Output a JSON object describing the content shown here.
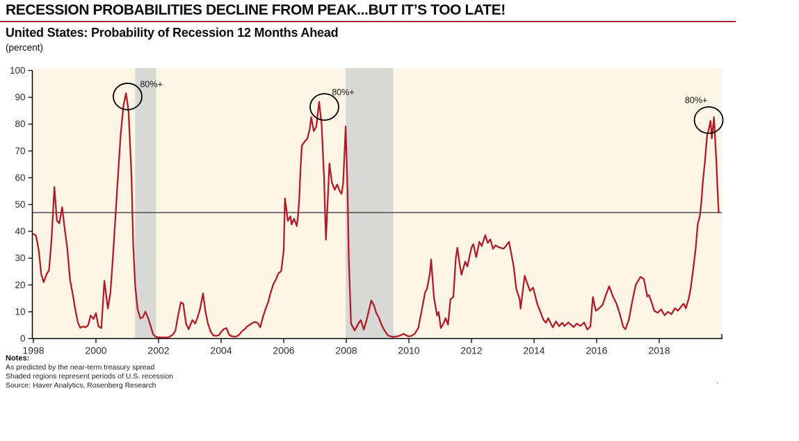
{
  "header": {
    "title": "RECESSION PROBABILITIES DECLINE FROM PEAK...BUT IT’S TOO LATE!",
    "subtitle": "United States: Probability of Recession 12 Months Ahead",
    "unit_label": "(percent)"
  },
  "notes": {
    "heading": "Notes:",
    "lines": [
      "As predicted by the near-term treasury spread",
      "Shaded regions represent periods of U.S. recession",
      "Source: Haver Analytics, Rosenberg Research"
    ]
  },
  "stray_dot": ".",
  "colors": {
    "line": "#b01c28",
    "plot_background": "#fdf6e7",
    "recession_band": "#d8d8d6",
    "reference_line": "#4d4d4d",
    "axis": "#000000",
    "tick_label": "#2b2b2b",
    "annotation": "#111111",
    "title_rule": "#9e2a36"
  },
  "chart_data": {
    "type": "line",
    "title": "United States: Probability of Recession 12 Months Ahead",
    "xlabel": "",
    "ylabel": "percent",
    "xlim": [
      1998,
      2020
    ],
    "ylim": [
      0,
      100
    ],
    "x_ticks": [
      1998,
      2000,
      2002,
      2004,
      2006,
      2008,
      2010,
      2012,
      2014,
      2016,
      2018
    ],
    "y_ticks": [
      0,
      10,
      20,
      30,
      40,
      50,
      60,
      70,
      80,
      90,
      100
    ],
    "grid": false,
    "legend": "none",
    "reference_line": {
      "value": 47
    },
    "recession_bands": [
      [
        2001.25,
        2001.92
      ],
      [
        2007.98,
        2009.5
      ]
    ],
    "annotations": [
      {
        "label": "80%+",
        "circle": {
          "year": 2001.01,
          "value": 90.3
        },
        "label_pos": {
          "year": 2001.77,
          "value": 94.8
        }
      },
      {
        "label": "80%+",
        "circle": {
          "year": 2007.3,
          "value": 86.4
        },
        "label_pos": {
          "year": 2007.9,
          "value": 91.8
        }
      },
      {
        "label": "80%+",
        "circle": {
          "year": 2019.58,
          "value": 81.5
        },
        "label_pos": {
          "year": 2019.18,
          "value": 88.9
        }
      }
    ],
    "series": [
      {
        "name": "Probability of recession 12 months ahead (%)",
        "points": [
          [
            1998.0,
            39
          ],
          [
            1998.08,
            38.5
          ],
          [
            1998.17,
            33
          ],
          [
            1998.25,
            24
          ],
          [
            1998.33,
            21
          ],
          [
            1998.42,
            24
          ],
          [
            1998.5,
            25.5
          ],
          [
            1998.58,
            37
          ],
          [
            1998.67,
            56.5
          ],
          [
            1998.75,
            44
          ],
          [
            1998.83,
            43
          ],
          [
            1998.92,
            49
          ],
          [
            1999.0,
            41
          ],
          [
            1999.08,
            34
          ],
          [
            1999.17,
            22
          ],
          [
            1999.25,
            17
          ],
          [
            1999.33,
            11.5
          ],
          [
            1999.42,
            6
          ],
          [
            1999.5,
            4
          ],
          [
            1999.58,
            4.5
          ],
          [
            1999.67,
            4.2
          ],
          [
            1999.75,
            5
          ],
          [
            1999.83,
            8.6
          ],
          [
            1999.92,
            7.3
          ],
          [
            2000.0,
            9.5
          ],
          [
            2000.08,
            4.5
          ],
          [
            2000.17,
            3.9
          ],
          [
            2000.27,
            21.5
          ],
          [
            2000.38,
            11.2
          ],
          [
            2000.46,
            17
          ],
          [
            2000.54,
            30
          ],
          [
            2000.63,
            47
          ],
          [
            2000.71,
            62
          ],
          [
            2000.79,
            76
          ],
          [
            2000.88,
            87
          ],
          [
            2000.96,
            91.5
          ],
          [
            2001.04,
            85
          ],
          [
            2001.13,
            62
          ],
          [
            2001.19,
            35
          ],
          [
            2001.25,
            20
          ],
          [
            2001.33,
            11
          ],
          [
            2001.42,
            7.5
          ],
          [
            2001.5,
            8
          ],
          [
            2001.58,
            10
          ],
          [
            2001.67,
            7.5
          ],
          [
            2001.75,
            4.5
          ],
          [
            2001.83,
            1.5
          ],
          [
            2001.92,
            0.6
          ],
          [
            2002.0,
            0.5
          ],
          [
            2002.17,
            0.4
          ],
          [
            2002.33,
            0.5
          ],
          [
            2002.46,
            1.5
          ],
          [
            2002.54,
            3
          ],
          [
            2002.63,
            9
          ],
          [
            2002.71,
            13.5
          ],
          [
            2002.79,
            13
          ],
          [
            2002.88,
            5.5
          ],
          [
            2002.96,
            3.5
          ],
          [
            2003.08,
            6.9
          ],
          [
            2003.17,
            5.6
          ],
          [
            2003.25,
            8
          ],
          [
            2003.33,
            11.2
          ],
          [
            2003.42,
            16.9
          ],
          [
            2003.5,
            10
          ],
          [
            2003.58,
            5.5
          ],
          [
            2003.67,
            2.5
          ],
          [
            2003.75,
            1.2
          ],
          [
            2003.83,
            1
          ],
          [
            2003.92,
            1.2
          ],
          [
            2004.0,
            2.5
          ],
          [
            2004.08,
            3.5
          ],
          [
            2004.17,
            3.9
          ],
          [
            2004.25,
            1.5
          ],
          [
            2004.33,
            0.9
          ],
          [
            2004.42,
            0.7
          ],
          [
            2004.5,
            0.8
          ],
          [
            2004.58,
            1.5
          ],
          [
            2004.67,
            2.8
          ],
          [
            2004.75,
            3.5
          ],
          [
            2004.83,
            4.5
          ],
          [
            2004.92,
            5.2
          ],
          [
            2005.0,
            5.8
          ],
          [
            2005.08,
            6.2
          ],
          [
            2005.17,
            5.8
          ],
          [
            2005.25,
            4.2
          ],
          [
            2005.33,
            7.8
          ],
          [
            2005.42,
            11
          ],
          [
            2005.5,
            13.5
          ],
          [
            2005.58,
            17
          ],
          [
            2005.67,
            20.4
          ],
          [
            2005.75,
            22
          ],
          [
            2005.83,
            24.3
          ],
          [
            2005.92,
            25.2
          ],
          [
            2006.0,
            33
          ],
          [
            2006.04,
            52.3
          ],
          [
            2006.13,
            43.9
          ],
          [
            2006.21,
            45.6
          ],
          [
            2006.25,
            42.6
          ],
          [
            2006.33,
            44.7
          ],
          [
            2006.42,
            42
          ],
          [
            2006.46,
            46
          ],
          [
            2006.5,
            53
          ],
          [
            2006.54,
            64
          ],
          [
            2006.58,
            72
          ],
          [
            2006.67,
            73.5
          ],
          [
            2006.75,
            74.5
          ],
          [
            2006.83,
            78
          ],
          [
            2006.88,
            82.6
          ],
          [
            2006.96,
            77.4
          ],
          [
            2007.04,
            79
          ],
          [
            2007.13,
            88.3
          ],
          [
            2007.21,
            80
          ],
          [
            2007.29,
            60
          ],
          [
            2007.35,
            36.9
          ],
          [
            2007.42,
            55
          ],
          [
            2007.46,
            65.3
          ],
          [
            2007.54,
            58.2
          ],
          [
            2007.63,
            55.5
          ],
          [
            2007.71,
            57.5
          ],
          [
            2007.79,
            55
          ],
          [
            2007.85,
            54
          ],
          [
            2007.9,
            58
          ],
          [
            2007.98,
            79.1
          ],
          [
            2008.04,
            55
          ],
          [
            2008.08,
            30
          ],
          [
            2008.15,
            5.6
          ],
          [
            2008.27,
            3
          ],
          [
            2008.38,
            5.5
          ],
          [
            2008.46,
            6.9
          ],
          [
            2008.56,
            3.4
          ],
          [
            2008.65,
            7
          ],
          [
            2008.73,
            11
          ],
          [
            2008.8,
            14.2
          ],
          [
            2008.88,
            12.5
          ],
          [
            2008.96,
            9.5
          ],
          [
            2009.04,
            7.8
          ],
          [
            2009.13,
            5
          ],
          [
            2009.22,
            3
          ],
          [
            2009.33,
            1.2
          ],
          [
            2009.42,
            0.8
          ],
          [
            2009.5,
            0.6
          ],
          [
            2009.63,
            0.8
          ],
          [
            2009.75,
            1.3
          ],
          [
            2009.83,
            1.8
          ],
          [
            2009.92,
            1.2
          ],
          [
            2010.0,
            0.8
          ],
          [
            2010.08,
            1
          ],
          [
            2010.18,
            1.7
          ],
          [
            2010.3,
            3.9
          ],
          [
            2010.4,
            9.9
          ],
          [
            2010.52,
            17.3
          ],
          [
            2010.58,
            18.6
          ],
          [
            2010.67,
            24.3
          ],
          [
            2010.71,
            29.5
          ],
          [
            2010.8,
            15.5
          ],
          [
            2010.9,
            8.6
          ],
          [
            2010.95,
            9.9
          ],
          [
            2011.02,
            3.9
          ],
          [
            2011.1,
            5.5
          ],
          [
            2011.17,
            7.6
          ],
          [
            2011.25,
            5.2
          ],
          [
            2011.33,
            14.7
          ],
          [
            2011.42,
            15.5
          ],
          [
            2011.5,
            30
          ],
          [
            2011.55,
            33.9
          ],
          [
            2011.63,
            27
          ],
          [
            2011.68,
            23.8
          ],
          [
            2011.8,
            28.7
          ],
          [
            2011.87,
            26.9
          ],
          [
            2012.0,
            33.9
          ],
          [
            2012.06,
            35.2
          ],
          [
            2012.15,
            30.4
          ],
          [
            2012.25,
            36.1
          ],
          [
            2012.33,
            34.5
          ],
          [
            2012.44,
            38.6
          ],
          [
            2012.52,
            35.7
          ],
          [
            2012.6,
            37
          ],
          [
            2012.69,
            33.5
          ],
          [
            2012.77,
            34.8
          ],
          [
            2012.85,
            34.2
          ],
          [
            2012.94,
            33.8
          ],
          [
            2013.02,
            33.5
          ],
          [
            2013.1,
            34.5
          ],
          [
            2013.2,
            36.1
          ],
          [
            2013.35,
            26.9
          ],
          [
            2013.43,
            18.6
          ],
          [
            2013.54,
            14.7
          ],
          [
            2013.57,
            11.2
          ],
          [
            2013.7,
            23.4
          ],
          [
            2013.77,
            21
          ],
          [
            2013.87,
            17.8
          ],
          [
            2013.97,
            19
          ],
          [
            2014.1,
            13
          ],
          [
            2014.22,
            9.4
          ],
          [
            2014.3,
            7
          ],
          [
            2014.38,
            5.9
          ],
          [
            2014.45,
            7.6
          ],
          [
            2014.6,
            4.2
          ],
          [
            2014.7,
            6.4
          ],
          [
            2014.8,
            4.6
          ],
          [
            2014.9,
            5.9
          ],
          [
            2014.97,
            4.7
          ],
          [
            2015.1,
            6
          ],
          [
            2015.26,
            4.3
          ],
          [
            2015.37,
            5.6
          ],
          [
            2015.48,
            4.7
          ],
          [
            2015.6,
            6
          ],
          [
            2015.7,
            3.4
          ],
          [
            2015.8,
            4.5
          ],
          [
            2015.88,
            15.5
          ],
          [
            2015.97,
            10.4
          ],
          [
            2016.08,
            11.3
          ],
          [
            2016.19,
            12.6
          ],
          [
            2016.3,
            16.4
          ],
          [
            2016.4,
            19.5
          ],
          [
            2016.52,
            15.7
          ],
          [
            2016.63,
            13.1
          ],
          [
            2016.74,
            9.2
          ],
          [
            2016.85,
            4.4
          ],
          [
            2016.92,
            3.5
          ],
          [
            2017.03,
            7
          ],
          [
            2017.14,
            14
          ],
          [
            2017.25,
            20.1
          ],
          [
            2017.4,
            23
          ],
          [
            2017.51,
            22.2
          ],
          [
            2017.62,
            15.7
          ],
          [
            2017.67,
            16.2
          ],
          [
            2017.73,
            14.4
          ],
          [
            2017.84,
            10.4
          ],
          [
            2017.95,
            9.6
          ],
          [
            2018.06,
            10.9
          ],
          [
            2018.17,
            8.7
          ],
          [
            2018.28,
            10
          ],
          [
            2018.39,
            9.1
          ],
          [
            2018.5,
            11.3
          ],
          [
            2018.6,
            10.4
          ],
          [
            2018.72,
            12.2
          ],
          [
            2018.78,
            13
          ],
          [
            2018.85,
            11.3
          ],
          [
            2018.94,
            14.8
          ],
          [
            2019.0,
            18.3
          ],
          [
            2019.08,
            25.3
          ],
          [
            2019.16,
            33.1
          ],
          [
            2019.23,
            42.7
          ],
          [
            2019.3,
            45.8
          ],
          [
            2019.35,
            51.2
          ],
          [
            2019.39,
            58.2
          ],
          [
            2019.46,
            66
          ],
          [
            2019.53,
            75.7
          ],
          [
            2019.58,
            77.9
          ],
          [
            2019.64,
            81.2
          ],
          [
            2019.68,
            74.7
          ],
          [
            2019.75,
            82.6
          ],
          [
            2019.83,
            65.3
          ],
          [
            2019.86,
            56.4
          ],
          [
            2019.9,
            47
          ]
        ]
      }
    ]
  }
}
